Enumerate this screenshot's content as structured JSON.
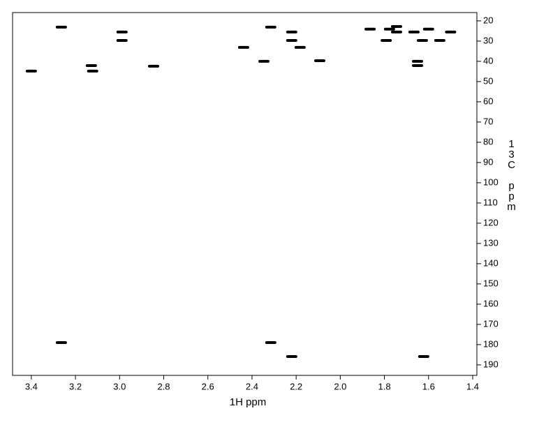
{
  "chart_data": {
    "type": "scatter",
    "x_label": "1H ppm",
    "y_label": "13C ppm",
    "color": "#000000",
    "xlim": [
      3.485,
      1.381
    ],
    "ylim": [
      195.2,
      15.9
    ],
    "xticks": [
      3.4,
      3.2,
      {
        "value": 3,
        "label": "3.0"
      },
      2.8,
      2.6,
      2.4,
      2.2,
      {
        "value": 2,
        "label": "2.0"
      },
      1.8,
      1.6,
      1.4
    ],
    "yticks": [
      20,
      30,
      40,
      50,
      60,
      70,
      80,
      90,
      100,
      110,
      120,
      130,
      140,
      150,
      160,
      170,
      180,
      190
    ],
    "x": [
      3.4,
      3.264,
      3.128,
      3.122,
      2.989,
      2.989,
      2.846,
      2.438,
      2.346,
      2.315,
      2.22,
      2.22,
      2.182,
      2.093,
      1.792,
      1.777,
      1.745,
      1.745,
      1.666,
      1.65,
      1.65,
      1.628,
      1.549,
      1.5,
      3.264,
      2.315,
      2.22,
      1.622,
      1.865,
      1.6
    ],
    "values": [
      44.8,
      23.1,
      42.1,
      44.8,
      25.5,
      29.7,
      42.4,
      33.1,
      40.0,
      23.1,
      25.5,
      29.7,
      33.1,
      39.7,
      29.7,
      24.1,
      22.8,
      25.5,
      25.5,
      40.0,
      42.1,
      29.7,
      29.7,
      25.5,
      179.0,
      179.0,
      185.9,
      185.9,
      24.1,
      24.1
    ]
  }
}
